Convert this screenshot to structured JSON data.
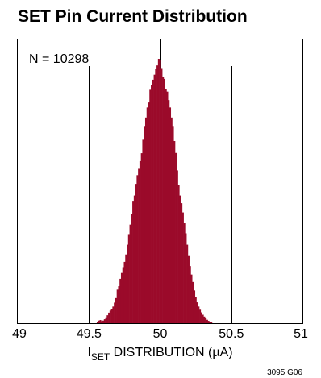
{
  "chart_data": {
    "type": "bar",
    "title": "SET Pin Current Distribution",
    "annotation": "N = 10298",
    "xlabel": {
      "main": "I",
      "subscript": "SET",
      "rest": " DISTRIBUTION (µA)"
    },
    "ylabel": "",
    "xlim": [
      49,
      51
    ],
    "xticks": [
      "49",
      "49.5",
      "50",
      "50.5",
      "51"
    ],
    "xtick_values": [
      49,
      49.5,
      50,
      50.5,
      51
    ],
    "gridlines_x": [
      49.5,
      50,
      50.5
    ],
    "ylim": [
      0,
      100
    ],
    "bar_color": "#9b0a2a",
    "bin_width": 0.01,
    "histogram": [
      [
        49.56,
        0.4
      ],
      [
        49.57,
        1.0
      ],
      [
        49.58,
        1.2
      ],
      [
        49.59,
        0.8
      ],
      [
        49.6,
        1.0
      ],
      [
        49.61,
        1.5
      ],
      [
        49.62,
        2.2
      ],
      [
        49.63,
        3.0
      ],
      [
        49.64,
        4.0
      ],
      [
        49.65,
        4.8
      ],
      [
        49.66,
        5.2
      ],
      [
        49.67,
        6.3
      ],
      [
        49.68,
        7.8
      ],
      [
        49.69,
        9.5
      ],
      [
        49.7,
        12.7
      ],
      [
        49.71,
        14.0
      ],
      [
        49.72,
        16.8
      ],
      [
        49.73,
        19.0
      ],
      [
        49.74,
        21.2
      ],
      [
        49.75,
        23.2
      ],
      [
        49.76,
        26.0
      ],
      [
        49.77,
        29.7
      ],
      [
        49.78,
        33.7
      ],
      [
        49.79,
        37.3
      ],
      [
        49.8,
        41.3
      ],
      [
        49.81,
        46.0
      ],
      [
        49.82,
        48.3
      ],
      [
        49.83,
        52.7
      ],
      [
        49.84,
        56.0
      ],
      [
        49.85,
        58.4
      ],
      [
        49.86,
        61.3
      ],
      [
        49.87,
        64.3
      ],
      [
        49.88,
        69.4
      ],
      [
        49.89,
        74.6
      ],
      [
        49.9,
        77.8
      ],
      [
        49.91,
        81.6
      ],
      [
        49.92,
        83.5
      ],
      [
        49.93,
        88.3
      ],
      [
        49.94,
        90.2
      ],
      [
        49.95,
        92.1
      ],
      [
        49.96,
        94.0
      ],
      [
        49.97,
        96.2
      ],
      [
        49.98,
        97.5
      ],
      [
        49.99,
        100.0
      ],
      [
        50.0,
        99.4
      ],
      [
        50.01,
        96.5
      ],
      [
        50.02,
        93.3
      ],
      [
        50.03,
        92.4
      ],
      [
        50.04,
        88.6
      ],
      [
        50.05,
        87.6
      ],
      [
        50.06,
        84.4
      ],
      [
        50.07,
        81.6
      ],
      [
        50.08,
        77.8
      ],
      [
        50.09,
        74.6
      ],
      [
        50.1,
        68.9
      ],
      [
        50.11,
        64.4
      ],
      [
        50.12,
        57.8
      ],
      [
        50.13,
        52.4
      ],
      [
        50.14,
        48.3
      ],
      [
        50.15,
        45.4
      ],
      [
        50.16,
        41.9
      ],
      [
        50.17,
        37.8
      ],
      [
        50.18,
        34.0
      ],
      [
        50.19,
        29.7
      ],
      [
        50.2,
        25.4
      ],
      [
        50.21,
        21.6
      ],
      [
        50.22,
        18.4
      ],
      [
        50.23,
        15.6
      ],
      [
        50.24,
        12.4
      ],
      [
        50.25,
        9.8
      ],
      [
        50.26,
        7.9
      ],
      [
        50.27,
        6.3
      ],
      [
        50.28,
        5.1
      ],
      [
        50.29,
        4.1
      ],
      [
        50.3,
        3.2
      ],
      [
        50.31,
        2.5
      ],
      [
        50.32,
        1.9
      ],
      [
        50.33,
        1.3
      ],
      [
        50.34,
        0.9
      ],
      [
        50.35,
        0.6
      ],
      [
        50.36,
        0.3
      ]
    ]
  },
  "figure_code": "3095 G06"
}
